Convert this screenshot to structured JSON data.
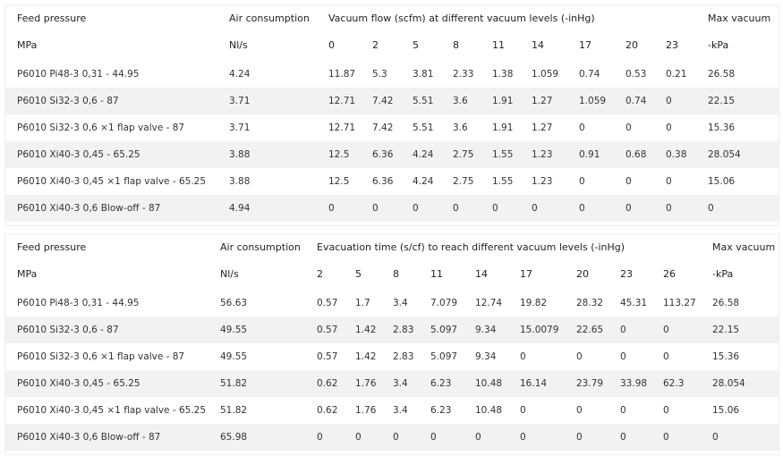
{
  "tables": [
    {
      "header": {
        "feed": "Feed pressure",
        "air": "Air consumption",
        "title": "Vacuum flow (scfm) at different vacuum levels (-inHg)",
        "max": "Max vacuum"
      },
      "units": {
        "feed": "MPa",
        "air": "Nl/s",
        "levels": [
          "0",
          "2",
          "5",
          "8",
          "11",
          "14",
          "17",
          "20",
          "23"
        ],
        "max": "-kPa"
      },
      "rows": [
        [
          "P6010 Pi48-3 0,31 - 44.95",
          "4.24",
          "11.87",
          "5.3",
          "3.81",
          "2.33",
          "1.38",
          "1.059",
          "0.74",
          "0.53",
          "0.21",
          "26.58"
        ],
        [
          "P6010 Si32-3 0,6 - 87",
          "3.71",
          "12.71",
          "7.42",
          "5.51",
          "3.6",
          "1.91",
          "1.27",
          "1.059",
          "0.74",
          "0",
          "22.15"
        ],
        [
          "P6010 Si32-3 0,6 ×1 flap valve - 87",
          "3.71",
          "12.71",
          "7.42",
          "5.51",
          "3.6",
          "1.91",
          "1.27",
          "0",
          "0",
          "0",
          "15.36"
        ],
        [
          "P6010 Xi40-3 0,45 - 65.25",
          "3.88",
          "12.5",
          "6.36",
          "4.24",
          "2.75",
          "1.55",
          "1.23",
          "0.91",
          "0.68",
          "0.38",
          "28.054"
        ],
        [
          "P6010 Xi40-3 0,45 ×1 flap valve - 65.25",
          "3.88",
          "12.5",
          "6.36",
          "4.24",
          "2.75",
          "1.55",
          "1.23",
          "0",
          "0",
          "0",
          "15.06"
        ],
        [
          "P6010 Xi40-3 0,6 Blow-off - 87",
          "4.94",
          "0",
          "0",
          "0",
          "0",
          "0",
          "0",
          "0",
          "0",
          "0",
          "0"
        ]
      ]
    },
    {
      "header": {
        "feed": "Feed pressure",
        "air": "Air consumption",
        "title": "Evacuation time (s/cf) to reach different vacuum levels (-inHg)",
        "max": "Max vacuum"
      },
      "units": {
        "feed": "MPa",
        "air": "Nl/s",
        "levels": [
          "2",
          "5",
          "8",
          "11",
          "14",
          "17",
          "20",
          "23",
          "26"
        ],
        "max": "-kPa"
      },
      "rows": [
        [
          "P6010 Pi48-3 0,31 - 44.95",
          "56.63",
          "0.57",
          "1.7",
          "3.4",
          "7.079",
          "12.74",
          "19.82",
          "28.32",
          "45.31",
          "113.27",
          "26.58"
        ],
        [
          "P6010 Si32-3 0,6 - 87",
          "49.55",
          "0.57",
          "1.42",
          "2.83",
          "5.097",
          "9.34",
          "15.0079",
          "22.65",
          "0",
          "0",
          "22.15"
        ],
        [
          "P6010 Si32-3 0,6 ×1 flap valve - 87",
          "49.55",
          "0.57",
          "1.42",
          "2.83",
          "5.097",
          "9.34",
          "0",
          "0",
          "0",
          "0",
          "15.36"
        ],
        [
          "P6010 Xi40-3 0,45 - 65.25",
          "51.82",
          "0.62",
          "1.76",
          "3.4",
          "6.23",
          "10.48",
          "16.14",
          "23.79",
          "33.98",
          "62.3",
          "28.054"
        ],
        [
          "P6010 Xi40-3 0,45 ×1 flap valve - 65.25",
          "51.82",
          "0.62",
          "1.76",
          "3.4",
          "6.23",
          "10.48",
          "0",
          "0",
          "0",
          "0",
          "15.06"
        ],
        [
          "P6010 Xi40-3 0,6 Blow-off - 87",
          "65.98",
          "0",
          "0",
          "0",
          "0",
          "0",
          "0",
          "0",
          "0",
          "0",
          "0"
        ]
      ]
    }
  ]
}
